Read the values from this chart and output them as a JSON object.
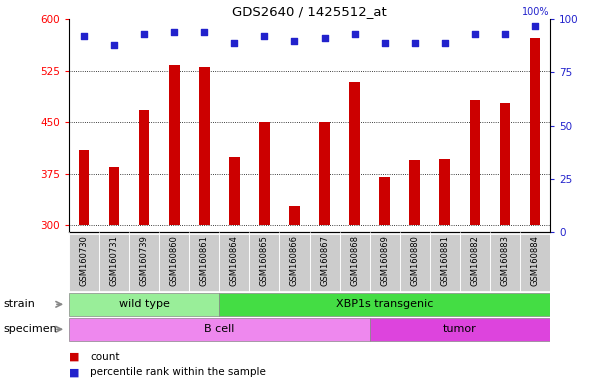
{
  "title": "GDS2640 / 1425512_at",
  "samples": [
    "GSM160730",
    "GSM160731",
    "GSM160739",
    "GSM160860",
    "GSM160861",
    "GSM160864",
    "GSM160865",
    "GSM160866",
    "GSM160867",
    "GSM160868",
    "GSM160869",
    "GSM160880",
    "GSM160881",
    "GSM160882",
    "GSM160883",
    "GSM160884"
  ],
  "counts": [
    410,
    385,
    468,
    533,
    530,
    400,
    450,
    328,
    450,
    508,
    370,
    395,
    397,
    482,
    478,
    572
  ],
  "percentiles": [
    92,
    88,
    93,
    94,
    94,
    89,
    92,
    90,
    91,
    93,
    89,
    89,
    89,
    93,
    93,
    97
  ],
  "ylim_left": [
    290,
    600
  ],
  "ylim_right": [
    0,
    100
  ],
  "yticks_left": [
    300,
    375,
    450,
    525,
    600
  ],
  "yticks_right": [
    0,
    25,
    50,
    75,
    100
  ],
  "bar_color": "#cc0000",
  "dot_color": "#2222cc",
  "grid_color": "#000000",
  "strain_groups": [
    {
      "label": "wild type",
      "start": 0,
      "end": 5,
      "color": "#99ee99"
    },
    {
      "label": "XBP1s transgenic",
      "start": 5,
      "end": 16,
      "color": "#44dd44"
    }
  ],
  "specimen_groups": [
    {
      "label": "B cell",
      "start": 0,
      "end": 10,
      "color": "#ee88ee"
    },
    {
      "label": "tumor",
      "start": 10,
      "end": 16,
      "color": "#dd44dd"
    }
  ],
  "strain_label": "strain",
  "specimen_label": "specimen",
  "legend_count_label": "count",
  "legend_pct_label": "percentile rank within the sample",
  "bar_bottom": 300,
  "xtick_bg_color": "#cccccc",
  "fig_bg_color": "#ffffff"
}
